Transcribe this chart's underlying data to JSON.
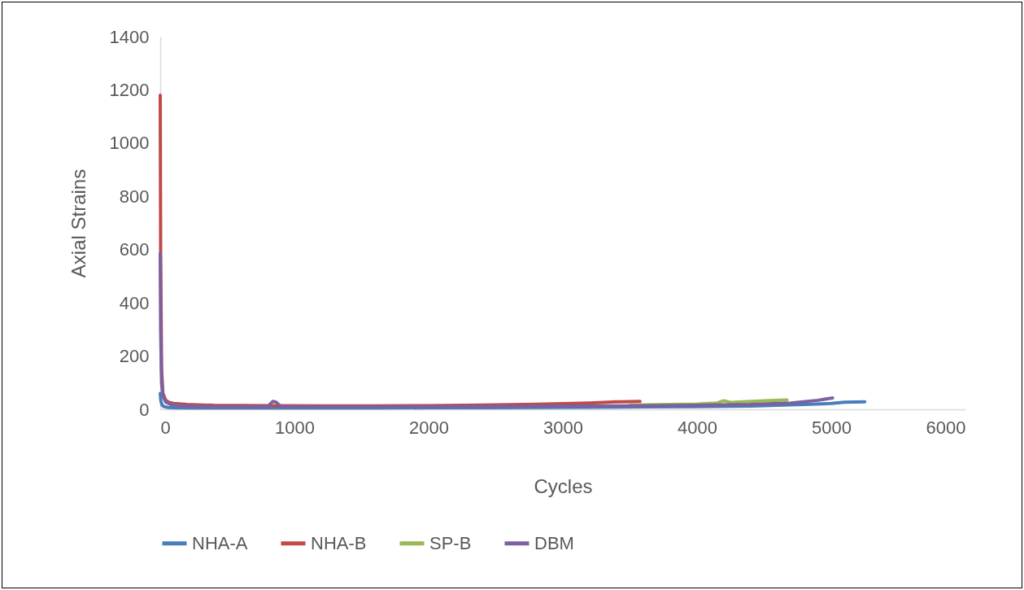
{
  "chart_data": {
    "type": "line",
    "xlabel": "Cycles",
    "ylabel": "Axial Strains",
    "xlim": [
      0,
      6000
    ],
    "xticks": [
      0,
      1000,
      2000,
      3000,
      4000,
      5000,
      6000
    ],
    "ylim": [
      0,
      1400
    ],
    "yticks": [
      0,
      200,
      400,
      600,
      800,
      1000,
      1200,
      1400
    ],
    "grid": false,
    "legend": "bottom",
    "marker": "none",
    "line_style": "solid",
    "series": [
      {
        "name": "NHA-A",
        "color": "#4a7ebb",
        "x": [
          0,
          5,
          15,
          30,
          60,
          100,
          200,
          400,
          800,
          1200,
          1600,
          2000,
          2400,
          2800,
          3200,
          3600,
          4000,
          4400,
          4800,
          5000,
          5100,
          5250
        ],
        "values": [
          60,
          30,
          15,
          10,
          7,
          6,
          5,
          5,
          5,
          5,
          5,
          6,
          6,
          7,
          8,
          9,
          10,
          12,
          18,
          22,
          27,
          28
        ]
      },
      {
        "name": "NHA-B",
        "color": "#be4b48",
        "x": [
          0,
          3,
          10,
          20,
          40,
          70,
          100,
          200,
          400,
          800,
          1200,
          1600,
          2000,
          2400,
          2800,
          3200,
          3400,
          3575
        ],
        "values": [
          1180,
          600,
          150,
          60,
          35,
          25,
          22,
          18,
          15,
          14,
          13,
          13,
          14,
          16,
          19,
          24,
          28,
          30
        ]
      },
      {
        "name": "SP-B",
        "color": "#98b954",
        "x": [
          3500,
          4000,
          4150,
          4200,
          4250,
          4500,
          4670
        ],
        "values": [
          16,
          20,
          24,
          32,
          26,
          32,
          35
        ]
      },
      {
        "name": "DBM",
        "color": "#7d60a0",
        "x": [
          0,
          3,
          10,
          20,
          40,
          80,
          150,
          300,
          600,
          800,
          840,
          860,
          900,
          1200,
          1600,
          2000,
          2500,
          3000,
          3500,
          4000,
          4400,
          4700,
          4900,
          5010
        ],
        "values": [
          585,
          300,
          100,
          50,
          28,
          18,
          14,
          11,
          10,
          10,
          30,
          28,
          10,
          10,
          10,
          10,
          11,
          12,
          13,
          15,
          18,
          24,
          34,
          43
        ]
      }
    ]
  }
}
